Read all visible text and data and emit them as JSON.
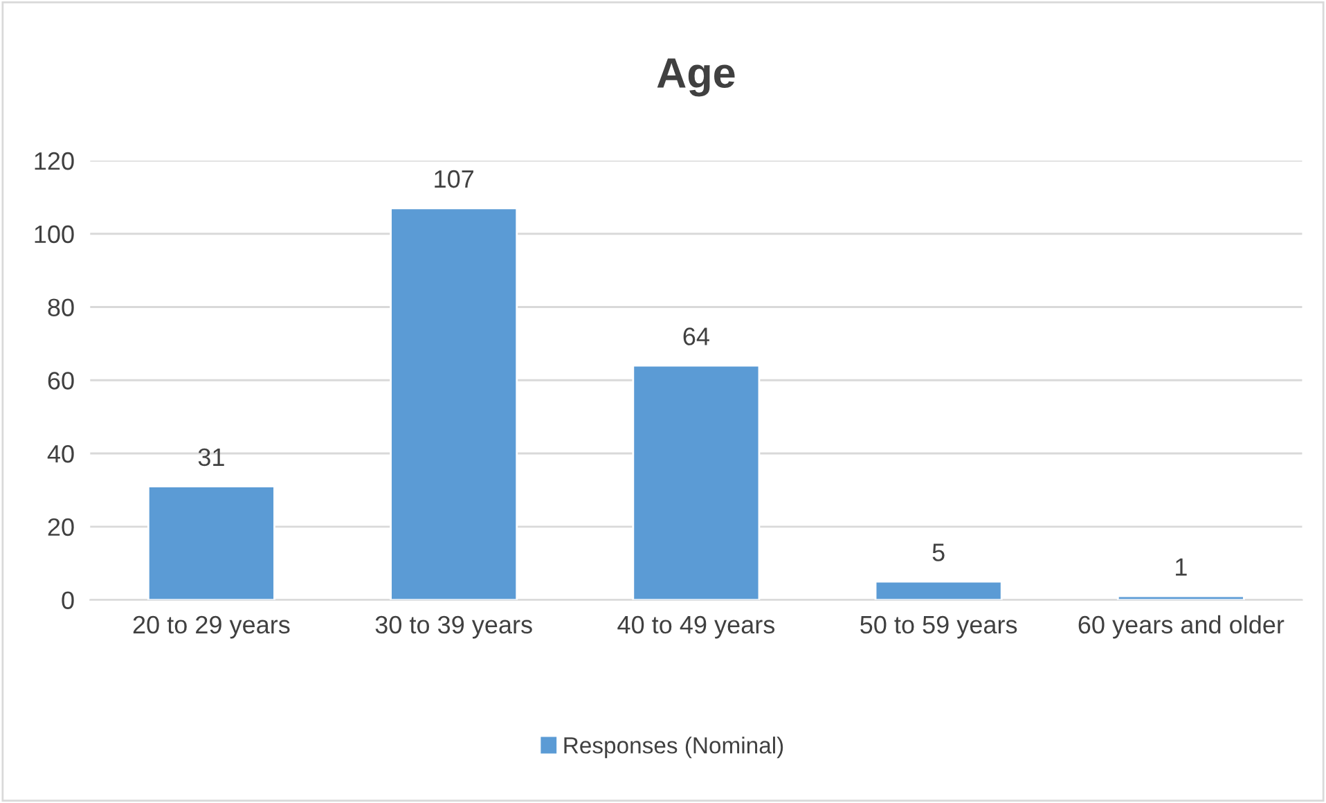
{
  "chart_data": {
    "type": "bar",
    "title": "Age",
    "categories": [
      "20 to 29 years",
      "30 to 39 years",
      "40 to 49 years",
      "50 to 59 years",
      "60 years and older"
    ],
    "series": [
      {
        "name": "Responses (Nominal)",
        "color": "#5b9bd5",
        "values": [
          31,
          107,
          64,
          5,
          1
        ]
      }
    ],
    "ylim": [
      0,
      120
    ],
    "yticks": [
      0,
      20,
      40,
      60,
      80,
      100,
      120
    ],
    "grid": "y",
    "legend": "bottom",
    "data_labels": true
  }
}
